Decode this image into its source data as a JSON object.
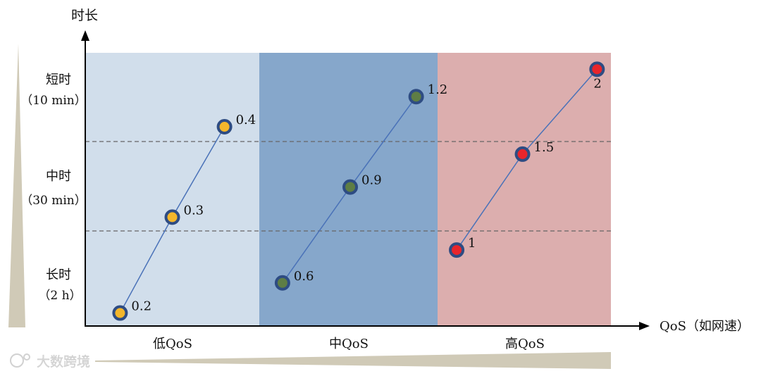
{
  "chart_data": {
    "type": "scatter",
    "y_axis_label": "时长",
    "x_axis_label": "QoS（如网速）",
    "y_levels": [
      {
        "name": "短时",
        "sub": "（10 min）"
      },
      {
        "name": "中时",
        "sub": "（30 min）"
      },
      {
        "name": "长时",
        "sub": "（2 h）"
      }
    ],
    "bands": [
      {
        "label": "低QoS",
        "color": "#d1deeb"
      },
      {
        "label": "中QoS",
        "color": "#86a7cb"
      },
      {
        "label": "高QoS",
        "color": "#dcaeae"
      }
    ],
    "series": [
      {
        "band": 0,
        "fill": "#f3b62b",
        "stroke": "#2e4c83",
        "line": "#4a72b8",
        "points": [
          {
            "label": "0.2",
            "qos": 0.2,
            "duration": 0.05
          },
          {
            "label": "0.3",
            "qos": 0.5,
            "duration": 0.4
          },
          {
            "label": "0.4",
            "qos": 0.8,
            "duration": 0.73
          }
        ]
      },
      {
        "band": 1,
        "fill": "#5e7d45",
        "stroke": "#2e4c83",
        "line": "#4a72b8",
        "points": [
          {
            "label": "0.6",
            "qos": 0.13,
            "duration": 0.16
          },
          {
            "label": "0.9",
            "qos": 0.51,
            "duration": 0.51
          },
          {
            "label": "1.2",
            "qos": 0.88,
            "duration": 0.84
          }
        ]
      },
      {
        "band": 2,
        "fill": "#e8252b",
        "stroke": "#2e4c83",
        "line": "#4a72b8",
        "points": [
          {
            "label": "1",
            "qos": 0.11,
            "duration": 0.28
          },
          {
            "label": "1.5",
            "qos": 0.49,
            "duration": 0.63
          },
          {
            "label": "2",
            "qos": 0.92,
            "duration": 0.94
          }
        ]
      }
    ],
    "watermark": "大数跨境"
  }
}
